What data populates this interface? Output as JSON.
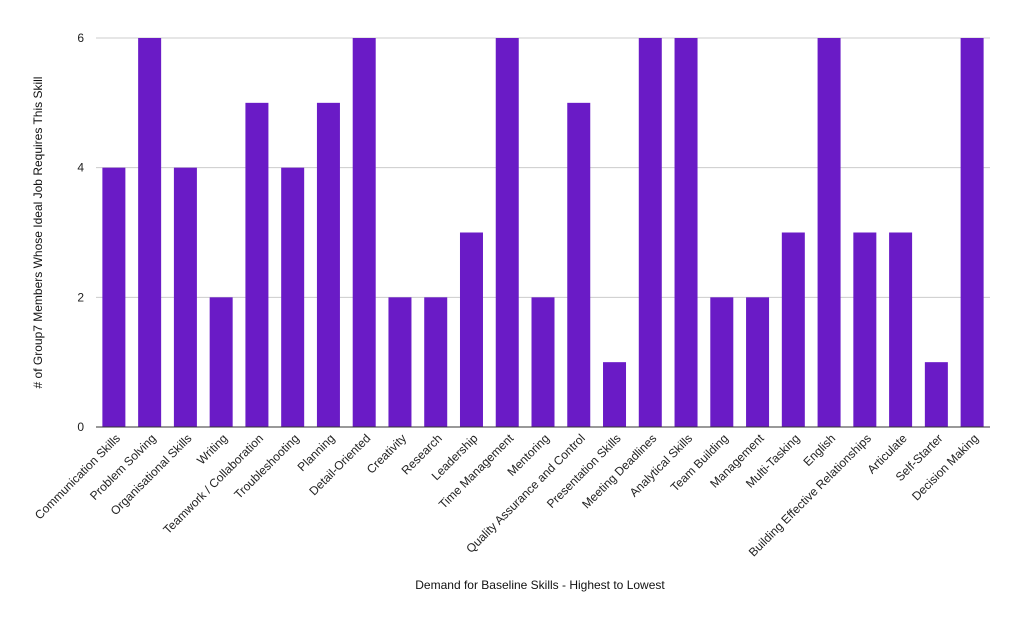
{
  "chart_data": {
    "type": "bar",
    "title": "",
    "xlabel": "Demand for Baseline Skills - Highest to Lowest",
    "ylabel": "# of Group7 Members Whose Ideal Job Requires This Skill",
    "ylim": [
      0,
      6
    ],
    "yticks": [
      0,
      2,
      4,
      6
    ],
    "grid": true,
    "legend": "none",
    "bar_color": "#6a1bc6",
    "categories": [
      "Communication Skills",
      "Problem Solving",
      "Organisational Skills",
      "Writing",
      "Teamwork / Collaboration",
      "Troubleshooting",
      "Planning",
      "Detail-Oriented",
      "Creativity",
      "Research",
      "Leadership",
      "Time Management",
      "Mentoring",
      "Quality Assurance and Control",
      "Presentation Skills",
      "Meeting Deadlines",
      "Analytical Skills",
      "Team Building",
      "Management",
      "Multi-Tasking",
      "English",
      "Building Effective Relationships",
      "Articulate",
      "Self-Starter",
      "Decision Making"
    ],
    "values": [
      4,
      6,
      4,
      2,
      5,
      4,
      5,
      6,
      2,
      2,
      3,
      6,
      2,
      5,
      1,
      6,
      6,
      2,
      2,
      3,
      6,
      3,
      3,
      1,
      6
    ]
  }
}
